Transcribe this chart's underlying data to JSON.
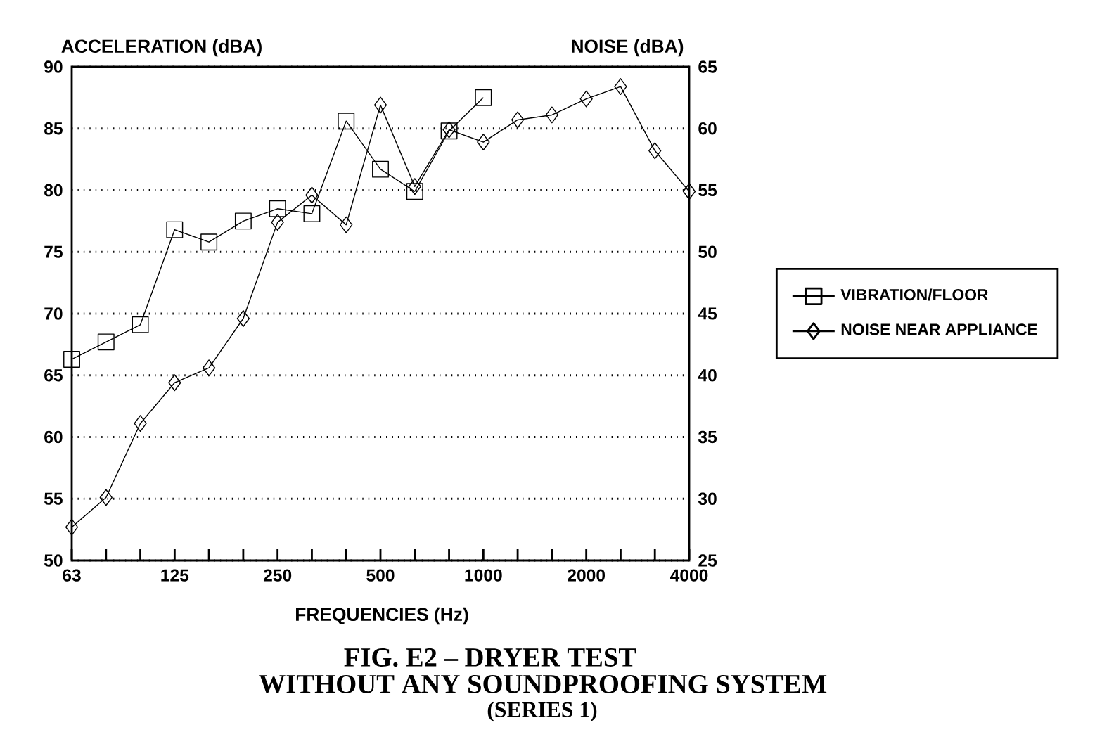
{
  "chart_data": {
    "type": "line",
    "title": "FIG. E2 – DRYER TEST",
    "subtitle": "WITHOUT ANY SOUNDPROOFING SYSTEM",
    "annotations": [
      "(SERIES 1)"
    ],
    "xlabel": "FREQUENCIES (Hz)",
    "ylabel": "ACCELERATION (dBA)",
    "y2label": "NOISE (dBA)",
    "categories": [
      "63",
      null,
      null,
      "125",
      null,
      null,
      "250",
      null,
      null,
      "500",
      null,
      null,
      "1000",
      null,
      null,
      "2000",
      null,
      null,
      "4000"
    ],
    "series": [
      {
        "name": "VIBRATION/FLOOR",
        "color": "#000000",
        "marker": "square",
        "values": [
          66.3,
          67.7,
          69.1,
          76.8,
          75.8,
          77.5,
          78.5,
          78.1,
          85.6,
          81.7,
          79.9,
          84.8,
          87.5,
          null,
          null,
          null,
          null,
          null,
          null
        ]
      },
      {
        "name": "NOISE NEAR APPLIANCE",
        "color": "#000000",
        "marker": "diamond",
        "axis": "y2",
        "values": [
          27.7,
          30.1,
          36.1,
          39.4,
          40.6,
          44.6,
          52.4,
          54.6,
          52.2,
          61.9,
          55.3,
          59.9,
          58.9,
          60.7,
          61.1,
          62.4,
          63.4,
          58.2,
          54.9
        ]
      }
    ],
    "ylim": [
      50,
      90
    ],
    "yticks": [
      50,
      55,
      60,
      65,
      70,
      75,
      80,
      85,
      90
    ],
    "y2lim": [
      25,
      65
    ],
    "y2ticks": [
      25,
      30,
      35,
      40,
      45,
      50,
      55,
      60,
      65
    ],
    "grid": "y",
    "legend": "right",
    "line_style": "solid"
  }
}
